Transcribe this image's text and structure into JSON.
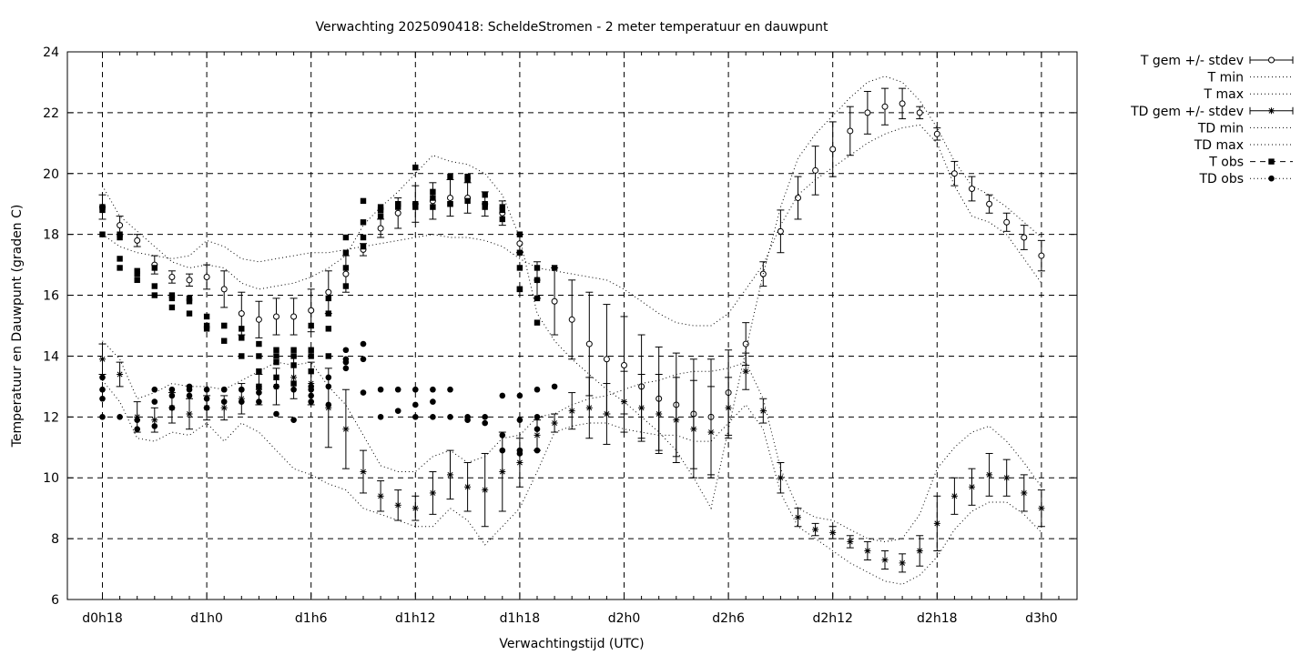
{
  "chart_data": {
    "type": "line",
    "title": "Verwachting 2025090418: ScheldeStromen - 2 meter temperatuur en dauwpunt",
    "xlabel": "Verwachtingstijd (UTC)",
    "ylabel": "Temperatuur en Dauwpunt (graden C)",
    "x_unit": "hours",
    "xlim": [
      -0.5,
      55.5
    ],
    "ylim": [
      6,
      24
    ],
    "y_ticks": [
      6,
      8,
      10,
      12,
      14,
      16,
      18,
      20,
      22,
      24
    ],
    "x_ticks": [
      {
        "x": 0,
        "label": "d0h18"
      },
      {
        "x": 6,
        "label": "d1h0"
      },
      {
        "x": 12,
        "label": "d1h6"
      },
      {
        "x": 18,
        "label": "d1h12"
      },
      {
        "x": 24,
        "label": "d1h18"
      },
      {
        "x": 30,
        "label": "d2h0"
      },
      {
        "x": 36,
        "label": "d2h6"
      },
      {
        "x": 42,
        "label": "d2h12"
      },
      {
        "x": 48,
        "label": "d2h18"
      },
      {
        "x": 54,
        "label": "d3h0"
      }
    ],
    "grid": true,
    "legend_position": "outside-top-right",
    "series": [
      {
        "name": "T gem +/- stdev",
        "style": "errorbar-open-circle",
        "x": [
          0,
          1,
          2,
          3,
          4,
          5,
          6,
          7,
          8,
          9,
          10,
          11,
          12,
          13,
          14,
          15,
          16,
          17,
          18,
          19,
          20,
          21,
          22,
          23,
          24,
          25,
          26,
          27,
          28,
          29,
          30,
          31,
          32,
          33,
          34,
          35,
          36,
          37,
          38,
          39,
          40,
          41,
          42,
          43,
          44,
          45,
          46,
          47,
          48,
          49,
          50,
          51,
          52,
          53,
          54
        ],
        "mean": [
          18.9,
          18.3,
          17.8,
          17.0,
          16.6,
          16.5,
          16.6,
          16.2,
          15.4,
          15.2,
          15.3,
          15.3,
          15.5,
          16.1,
          16.7,
          17.5,
          18.2,
          18.7,
          19.0,
          19.1,
          19.2,
          19.2,
          19.0,
          18.7,
          17.7,
          16.5,
          15.8,
          15.2,
          14.4,
          13.9,
          13.7,
          13.0,
          12.6,
          12.4,
          12.1,
          12.0,
          12.8,
          14.4,
          16.7,
          18.1,
          19.2,
          20.1,
          20.8,
          21.4,
          22.0,
          22.2,
          22.3,
          22.0,
          21.3,
          20.0,
          19.5,
          19.0,
          18.4,
          17.9,
          17.3
        ],
        "stdev": [
          0.4,
          0.3,
          0.2,
          0.3,
          0.2,
          0.2,
          0.4,
          0.6,
          0.7,
          0.6,
          0.6,
          0.6,
          0.7,
          0.7,
          0.6,
          0.2,
          0.3,
          0.5,
          0.6,
          0.6,
          0.6,
          0.5,
          0.4,
          0.4,
          0.3,
          0.6,
          1.1,
          1.3,
          1.7,
          1.8,
          1.6,
          1.7,
          1.7,
          1.7,
          1.8,
          1.9,
          1.4,
          0.7,
          0.4,
          0.7,
          0.7,
          0.8,
          0.9,
          0.8,
          0.7,
          0.6,
          0.5,
          0.2,
          0.2,
          0.4,
          0.4,
          0.3,
          0.3,
          0.4,
          0.5
        ]
      },
      {
        "name": "T min",
        "style": "dotted",
        "x": [
          0,
          1,
          2,
          3,
          4,
          5,
          6,
          7,
          8,
          9,
          10,
          11,
          12,
          13,
          14,
          15,
          16,
          17,
          18,
          19,
          20,
          21,
          22,
          23,
          24,
          25,
          26,
          27,
          28,
          29,
          30,
          31,
          32,
          33,
          34,
          35,
          36,
          37,
          38,
          39,
          40,
          41,
          42,
          43,
          44,
          45,
          46,
          47,
          48,
          49,
          50,
          51,
          52,
          53,
          54
        ],
        "values": [
          18.0,
          17.6,
          17.4,
          17.3,
          17.2,
          17.3,
          17.8,
          17.6,
          17.2,
          17.1,
          17.2,
          17.3,
          17.4,
          17.4,
          17.5,
          17.6,
          17.7,
          17.8,
          17.9,
          18.0,
          17.9,
          17.9,
          17.8,
          17.6,
          17.2,
          16.9,
          16.8,
          16.7,
          16.6,
          16.5,
          16.2,
          15.8,
          15.4,
          15.1,
          15.0,
          15.0,
          15.4,
          16.2,
          17.0,
          18.3,
          19.3,
          19.8,
          20.2,
          20.6,
          21.0,
          21.3,
          21.5,
          21.6,
          21.0,
          19.6,
          18.6,
          18.4,
          18.0,
          17.2,
          16.4
        ]
      },
      {
        "name": "T max",
        "style": "dotted",
        "x": [
          0,
          1,
          2,
          3,
          4,
          5,
          6,
          7,
          8,
          9,
          10,
          11,
          12,
          13,
          14,
          15,
          16,
          17,
          18,
          19,
          20,
          21,
          22,
          23,
          24,
          25,
          26,
          27,
          28,
          29,
          30,
          31,
          32,
          33,
          34,
          35,
          36,
          37,
          38,
          39,
          40,
          41,
          42,
          43,
          44,
          45,
          46,
          47,
          48,
          49,
          50,
          51,
          52,
          53,
          54
        ],
        "values": [
          19.6,
          18.6,
          18.1,
          17.6,
          17.1,
          16.9,
          17.0,
          16.9,
          16.4,
          16.2,
          16.3,
          16.4,
          16.6,
          16.9,
          17.3,
          18.3,
          18.9,
          19.4,
          20.0,
          20.6,
          20.4,
          20.3,
          20.0,
          19.3,
          17.9,
          15.4,
          14.5,
          13.9,
          13.4,
          12.9,
          12.5,
          12.0,
          11.5,
          10.9,
          10.0,
          9.0,
          11.6,
          14.2,
          16.7,
          18.9,
          20.5,
          21.3,
          21.9,
          22.5,
          23.0,
          23.2,
          23.0,
          22.4,
          21.5,
          20.4,
          19.6,
          19.3,
          18.9,
          18.4,
          17.9
        ]
      },
      {
        "name": "TD gem +/- stdev",
        "style": "errorbar-star",
        "x": [
          0,
          1,
          2,
          3,
          4,
          5,
          6,
          7,
          8,
          9,
          10,
          11,
          12,
          13,
          14,
          15,
          16,
          17,
          18,
          19,
          20,
          21,
          22,
          23,
          24,
          25,
          26,
          27,
          28,
          29,
          30,
          31,
          32,
          33,
          34,
          35,
          36,
          37,
          38,
          39,
          40,
          41,
          42,
          43,
          44,
          45,
          46,
          47,
          48,
          49,
          50,
          51,
          52,
          53,
          54
        ],
        "mean": [
          13.9,
          13.4,
          12.0,
          11.9,
          12.3,
          12.1,
          12.3,
          12.3,
          12.6,
          12.9,
          13.0,
          13.3,
          13.1,
          12.3,
          11.6,
          10.2,
          9.4,
          9.1,
          9.0,
          9.5,
          10.1,
          9.7,
          9.6,
          10.2,
          10.5,
          11.4,
          11.8,
          12.2,
          12.3,
          12.1,
          12.5,
          12.3,
          12.1,
          11.9,
          11.6,
          11.5,
          12.3,
          13.5,
          12.2,
          10.0,
          8.7,
          8.3,
          8.2,
          7.9,
          7.6,
          7.3,
          7.2,
          7.6,
          8.5,
          9.4,
          9.7,
          10.1,
          10.0,
          9.5,
          9.0
        ],
        "stdev": [
          0.5,
          0.4,
          0.5,
          0.4,
          0.5,
          0.5,
          0.4,
          0.4,
          0.5,
          0.5,
          0.6,
          0.7,
          0.7,
          1.3,
          1.3,
          0.7,
          0.5,
          0.5,
          0.4,
          0.7,
          0.8,
          0.8,
          1.2,
          1.3,
          0.8,
          0.5,
          0.3,
          0.6,
          1.0,
          1.0,
          1.0,
          1.1,
          1.3,
          1.4,
          1.6,
          1.5,
          1.0,
          0.6,
          0.4,
          0.5,
          0.3,
          0.2,
          0.2,
          0.2,
          0.3,
          0.3,
          0.3,
          0.5,
          0.9,
          0.6,
          0.6,
          0.7,
          0.6,
          0.6,
          0.6
        ]
      },
      {
        "name": "TD min",
        "style": "dotted",
        "x": [
          0,
          1,
          2,
          3,
          4,
          5,
          6,
          7,
          8,
          9,
          10,
          11,
          12,
          13,
          14,
          15,
          16,
          17,
          18,
          19,
          20,
          21,
          22,
          23,
          24,
          25,
          26,
          27,
          28,
          29,
          30,
          31,
          32,
          33,
          34,
          35,
          36,
          37,
          38,
          39,
          40,
          41,
          42,
          43,
          44,
          45,
          46,
          47,
          48,
          49,
          50,
          51,
          52,
          53,
          54
        ],
        "values": [
          13.2,
          12.5,
          11.3,
          11.2,
          11.5,
          11.4,
          11.8,
          11.2,
          11.8,
          11.5,
          10.9,
          10.3,
          10.1,
          9.8,
          9.6,
          9.0,
          8.8,
          8.6,
          8.4,
          8.4,
          9.0,
          8.6,
          7.8,
          8.4,
          9.0,
          10.2,
          11.5,
          11.7,
          11.8,
          11.8,
          11.6,
          11.5,
          11.4,
          11.4,
          11.2,
          11.2,
          11.8,
          12.4,
          11.6,
          9.5,
          8.4,
          8.0,
          7.6,
          7.2,
          6.9,
          6.6,
          6.5,
          6.8,
          7.4,
          8.3,
          8.9,
          9.2,
          9.2,
          8.8,
          8.2
        ]
      },
      {
        "name": "TD max",
        "style": "dotted",
        "x": [
          0,
          1,
          2,
          3,
          4,
          5,
          6,
          7,
          8,
          9,
          10,
          11,
          12,
          13,
          14,
          15,
          16,
          17,
          18,
          19,
          20,
          21,
          22,
          23,
          24,
          25,
          26,
          27,
          28,
          29,
          30,
          31,
          32,
          33,
          34,
          35,
          36,
          37,
          38,
          39,
          40,
          41,
          42,
          43,
          44,
          45,
          46,
          47,
          48,
          49,
          50,
          51,
          52,
          53,
          54
        ],
        "values": [
          14.5,
          13.9,
          12.6,
          12.8,
          13.1,
          13.0,
          13.0,
          12.9,
          13.2,
          13.5,
          13.8,
          13.7,
          13.8,
          13.0,
          12.4,
          11.4,
          10.4,
          10.2,
          10.2,
          10.7,
          10.9,
          10.5,
          10.7,
          11.3,
          11.4,
          12.0,
          12.1,
          12.4,
          12.6,
          12.7,
          12.9,
          13.1,
          13.2,
          13.4,
          13.5,
          13.5,
          13.6,
          13.8,
          12.6,
          10.3,
          9.0,
          8.7,
          8.6,
          8.3,
          8.0,
          7.9,
          8.0,
          8.8,
          10.3,
          11.0,
          11.5,
          11.7,
          11.2,
          10.5,
          9.7
        ]
      },
      {
        "name": "T obs",
        "style": "filled-square",
        "x": [
          0,
          0,
          0,
          1,
          1,
          1,
          1,
          2,
          2,
          2,
          3,
          3,
          3,
          4,
          4,
          4,
          5,
          5,
          5,
          6,
          6,
          6,
          7,
          7,
          7,
          8,
          8,
          8,
          9,
          9,
          9,
          9,
          10,
          10,
          10,
          10,
          11,
          11,
          11,
          11,
          12,
          12,
          12,
          12,
          13,
          13,
          13,
          13,
          14,
          14,
          14,
          14,
          15,
          15,
          15,
          15,
          16,
          16,
          16,
          17,
          17,
          17,
          18,
          18,
          18,
          19,
          19,
          19,
          20,
          20,
          20,
          21,
          21,
          21,
          22,
          22,
          22,
          23,
          23,
          23,
          24,
          24,
          24,
          24,
          24,
          25,
          25,
          25,
          25,
          26
        ],
        "values": [
          18.9,
          18.8,
          18.0,
          18.0,
          17.9,
          17.2,
          16.9,
          16.8,
          16.7,
          16.5,
          16.9,
          16.3,
          16.0,
          15.9,
          15.6,
          16.0,
          15.9,
          15.8,
          15.4,
          15.3,
          15.0,
          14.9,
          15.0,
          14.5,
          15.0,
          14.9,
          14.6,
          14.0,
          14.4,
          14.0,
          13.5,
          13.0,
          14.0,
          14.2,
          13.8,
          13.3,
          14.0,
          14.2,
          13.7,
          13.1,
          15.0,
          14.2,
          13.5,
          14.0,
          15.9,
          15.4,
          14.9,
          14.0,
          17.4,
          16.9,
          16.3,
          17.9,
          19.1,
          18.4,
          17.9,
          17.6,
          18.9,
          18.8,
          18.6,
          19.0,
          18.9,
          19.0,
          20.2,
          19.0,
          18.9,
          19.4,
          19.2,
          18.9,
          19.9,
          19.0,
          19.0,
          19.9,
          19.8,
          19.1,
          19.3,
          19.0,
          18.9,
          18.9,
          18.8,
          18.5,
          18.0,
          17.4,
          16.9,
          16.2,
          16.2,
          16.9,
          16.5,
          15.9,
          15.1,
          16.9
        ]
      },
      {
        "name": "TD obs",
        "style": "filled-circle",
        "x": [
          0,
          0,
          0,
          0,
          1,
          2,
          2,
          3,
          3,
          3,
          4,
          4,
          4,
          5,
          5,
          5,
          6,
          6,
          6,
          7,
          7,
          7,
          8,
          8,
          8,
          9,
          9,
          9,
          10,
          10,
          10,
          11,
          11,
          12,
          12,
          12,
          12,
          13,
          13,
          13,
          14,
          14,
          14,
          14,
          15,
          15,
          15,
          16,
          16,
          17,
          17,
          18,
          18,
          18,
          19,
          19,
          19,
          20,
          20,
          21,
          21,
          22,
          22,
          23,
          23,
          23,
          24,
          24,
          24,
          24,
          25,
          25,
          25,
          25,
          26
        ],
        "values": [
          13.3,
          12.9,
          12.6,
          12.0,
          12.0,
          11.9,
          11.6,
          12.9,
          12.5,
          11.7,
          12.9,
          12.7,
          12.3,
          13.0,
          12.9,
          12.7,
          12.9,
          12.6,
          12.3,
          12.9,
          12.9,
          12.5,
          12.9,
          12.9,
          12.5,
          13.0,
          12.8,
          12.5,
          13.0,
          12.1,
          13.0,
          12.9,
          11.9,
          13.0,
          12.7,
          12.5,
          12.9,
          13.3,
          13.0,
          12.4,
          14.2,
          13.9,
          13.8,
          13.6,
          14.4,
          13.9,
          12.8,
          12.9,
          12.0,
          12.9,
          12.2,
          12.9,
          12.4,
          12.0,
          12.9,
          12.5,
          12.0,
          12.9,
          12.0,
          12.0,
          11.9,
          12.0,
          11.8,
          12.7,
          11.4,
          10.9,
          12.7,
          11.9,
          10.9,
          10.8,
          12.9,
          12.0,
          11.6,
          10.9,
          13.0
        ]
      }
    ]
  }
}
